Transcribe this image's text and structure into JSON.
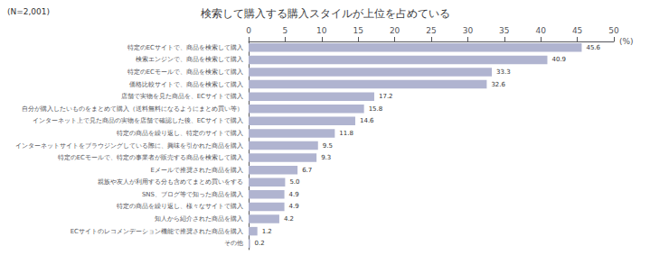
{
  "chart_data": {
    "type": "bar",
    "orientation": "horizontal",
    "title": "検索して購入する購入スタイルが上位を占めている",
    "annotations": [
      "(N=2,001)"
    ],
    "xlabel": "(%)",
    "xlim": [
      0,
      50
    ],
    "xticks": [
      0,
      5,
      10,
      15,
      20,
      25,
      30,
      35,
      40,
      45,
      50
    ],
    "categories": [
      "特定のECサイトで、商品を検索して購入",
      "検索エンジンで、商品を検索して購入",
      "特定のECモールで、商品を検索して購入",
      "価格比較サイトで、商品を検索して購入",
      "店舗で実物を見た商品を、ECサイトで購入",
      "自分が購入したいものをまとめて購入（送料無料になるようにまとめ買い等）",
      "インターネット上で見た商品の実物を店舗で確認した後、ECサイトで購入",
      "特定の商品を繰り返し、特定のサイトで購入",
      "インターネットサイトをブラウジングしている際に、興味を引かれた商品を購入",
      "特定のECモールで、特定の事業者が販売する商品を検索して購入",
      "Eメールで推奨された商品を購入",
      "親族や友人が利用する分も含めてまとめ買いをする",
      "SNS、ブログ等で知った商品を購入",
      "特定の商品を繰り返し、様々なサイトで購入",
      "知人から紹介された商品を購入",
      "ECサイトのレコメンデーション機能で推奨された商品を購入",
      "その他"
    ],
    "values": [
      45.6,
      40.9,
      33.3,
      32.6,
      17.2,
      15.8,
      14.6,
      11.8,
      9.5,
      9.3,
      6.7,
      5.0,
      4.9,
      4.9,
      4.2,
      1.2,
      0.2
    ],
    "value_labels": [
      "45.6",
      "40.9",
      "33.3",
      "32.6",
      "17.2",
      "15.8",
      "14.6",
      "11.8",
      "9.5",
      "9.3",
      "6.7",
      "5.0",
      "4.9",
      "4.9",
      "4.2",
      "1.2",
      "0.2"
    ],
    "color": "#b0b4d0",
    "data_labels": true,
    "grid": false
  }
}
